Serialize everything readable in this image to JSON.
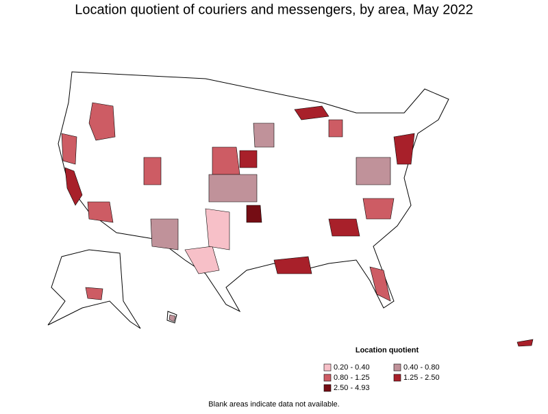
{
  "title": "Location quotient of couriers and messengers, by area, May 2022",
  "legend": {
    "title": "Location quotient",
    "items": [
      {
        "label": "0.20 - 0.40",
        "color": "#f7c0c8"
      },
      {
        "label": "0.40 - 0.80",
        "color": "#c0929a"
      },
      {
        "label": "0.80 - 1.25",
        "color": "#cd5c64"
      },
      {
        "label": "1.25 - 2.50",
        "color": "#a8202a"
      },
      {
        "label": "2.50 - 4.93",
        "color": "#750d14"
      }
    ]
  },
  "footnote": "Blank areas indicate data not available."
}
